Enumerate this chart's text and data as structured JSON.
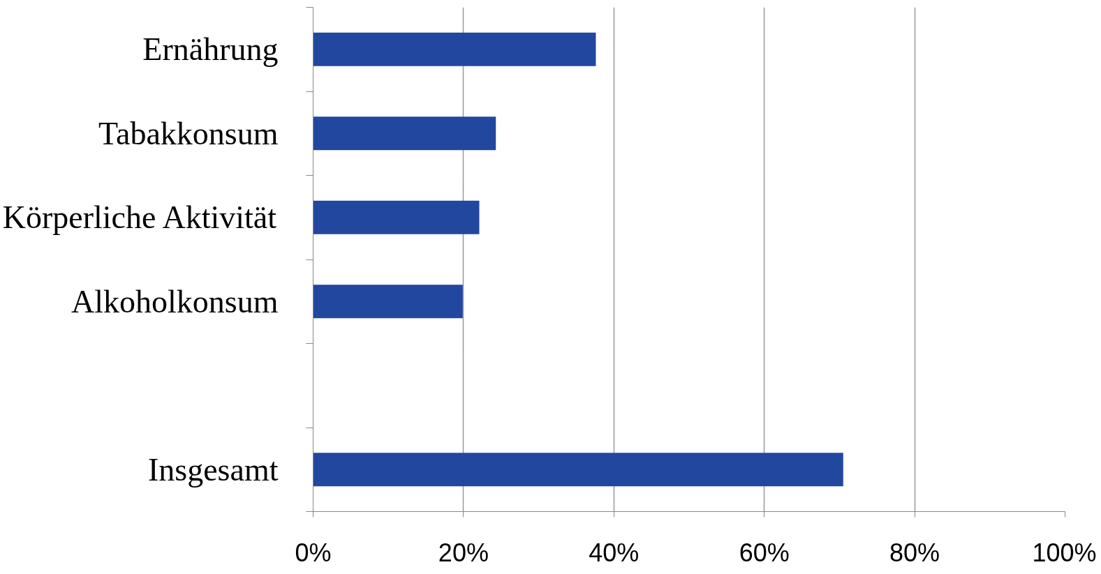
{
  "chart_data": {
    "type": "bar",
    "orientation": "horizontal",
    "categories": [
      "Ernährung",
      "Tabakkonsum",
      "Körperliche Aktivität",
      "Alkoholkonsum",
      null,
      "Insgesamt"
    ],
    "series": [
      {
        "color": "#22479f",
        "values": [
          37.6,
          24.3,
          22.1,
          19.9,
          null,
          70.5
        ]
      }
    ],
    "xlim": [
      0,
      100
    ],
    "xticks": [
      {
        "value": 0,
        "label": "0%"
      },
      {
        "value": 20,
        "label": "20%"
      },
      {
        "value": 40,
        "label": "40%"
      },
      {
        "value": 60,
        "label": "60%"
      },
      {
        "value": 80,
        "label": "80%"
      },
      {
        "value": 100,
        "label": "100%"
      }
    ],
    "grid": "x"
  }
}
